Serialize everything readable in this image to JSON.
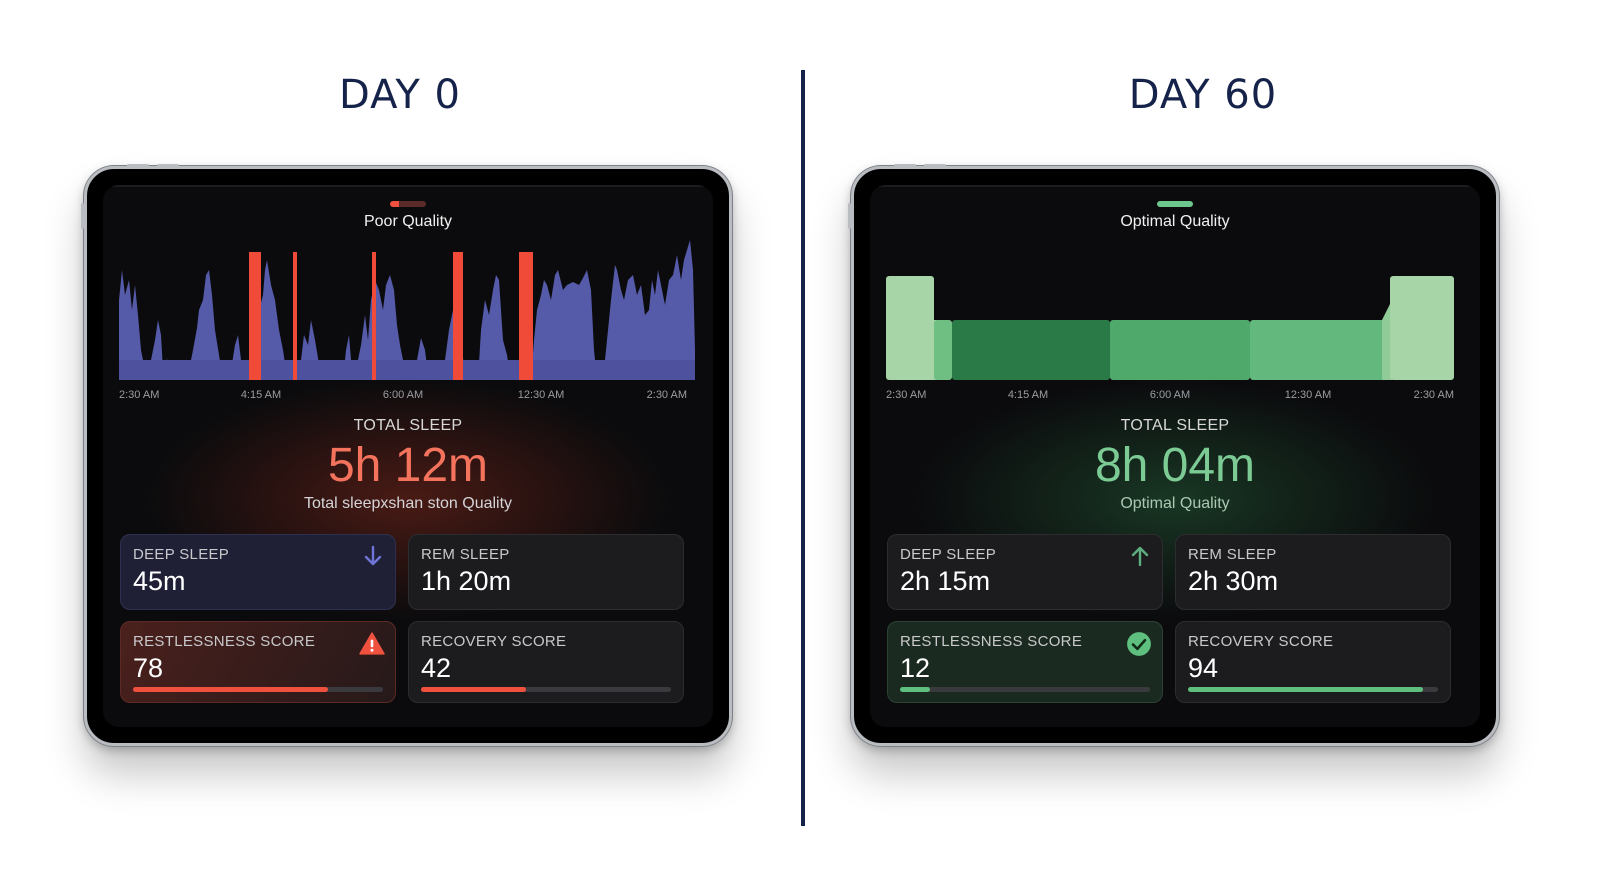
{
  "comparison": [
    {
      "id": "day0",
      "title": "DAY 0",
      "quality_label": "Poor Quality",
      "total_sleep_label": "TOTAL SLEEP",
      "total_sleep_value": "5h 12m",
      "total_sleep_caption": "Total sleepxshan ston Quality",
      "cards": [
        {
          "label": "DEEP SLEEP",
          "value": "45m",
          "icon": "arrow-down-icon"
        },
        {
          "label": "REM SLEEP",
          "value": "1h 20m"
        },
        {
          "label": "RESTLESSNESS SCORE",
          "value": "78",
          "icon": "warning-icon",
          "progress": 0.78
        },
        {
          "label": "RECOVERY SCORE",
          "value": "42",
          "progress": 0.42
        }
      ]
    },
    {
      "id": "day60",
      "title": "DAY 60",
      "quality_label": "Optimal Quality",
      "total_sleep_label": "TOTAL SLEEP",
      "total_sleep_value": "8h 04m",
      "total_sleep_caption": "Optimal Quality",
      "cards": [
        {
          "label": "DEEP SLEEP",
          "value": "2h 15m",
          "icon": "arrow-up-icon"
        },
        {
          "label": "REM SLEEP",
          "value": "2h 30m"
        },
        {
          "label": "RESTLESSNESS SCORE",
          "value": "12",
          "icon": "check-circle-icon",
          "progress": 0.12
        },
        {
          "label": "RECOVERY SCORE",
          "value": "94",
          "progress": 0.94
        }
      ]
    }
  ],
  "time_axis": [
    "2:30 AM",
    "4:15 AM",
    "6:00 AM",
    "12:30 AM",
    "2:30 AM"
  ],
  "colors": {
    "title": "#15224a",
    "poor_accent": "#f0503e",
    "poor_sleep_fill": "#5a5fb2",
    "poor_disruption": "#f04a38",
    "optimal_accent": "#6dc68e",
    "optimal_light": "#a8d5a8",
    "optimal_dark": "#2a7a48",
    "optimal_mid": "#4fa96b"
  },
  "chart_data": [
    {
      "type": "area",
      "title": "",
      "x": [
        "2:30 AM",
        "4:15 AM",
        "6:00 AM",
        "12:30 AM",
        "2:30 AM"
      ],
      "series": [],
      "disruptions": [
        0.245,
        0.31,
        0.45,
        0.6,
        0.72
      ],
      "grid": false,
      "legend": "none"
    },
    {
      "type": "area",
      "title": "",
      "x": [
        "2:30 AM",
        "4:15 AM",
        "6:00 AM",
        "12:30 AM",
        "2:30 AM"
      ],
      "series": [],
      "grid": false,
      "legend": "none"
    }
  ]
}
